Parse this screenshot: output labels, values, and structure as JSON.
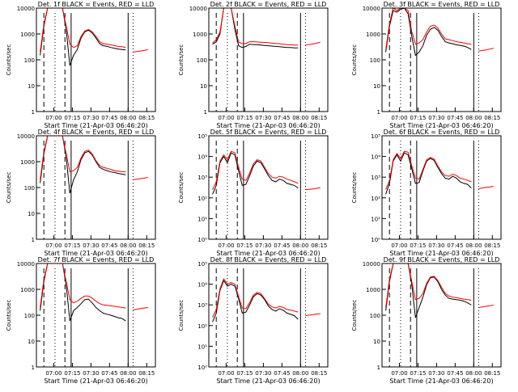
{
  "colors": {
    "events": "#000000",
    "lld": "#ff0000",
    "background": "#ffffff"
  },
  "shared": {
    "xlabel": "Start Time (21-Apr-03 06:46:20)",
    "ylabel": "Counts/sec",
    "x_ticks": [
      "07:00",
      "07:15",
      "07:30",
      "07:45",
      "08:00",
      "08:15"
    ],
    "y_ticks_decade": [
      "1",
      "10",
      "100",
      "1000",
      "10000"
    ],
    "y_ticks_exp": [
      "10⁰",
      "10¹",
      "10²",
      "10³",
      "10⁴",
      "10⁵"
    ]
  },
  "chart_data": [
    {
      "type": "line",
      "title": "Det. 1f BLACK = Events, RED = LLD",
      "ylim": [
        1,
        10000
      ],
      "yscale": "log",
      "tick_style": "decade",
      "x": [
        "06:49",
        "06:52",
        "06:55",
        "06:58",
        "07:01",
        "07:04",
        "07:07",
        "07:10",
        "07:13",
        "07:16",
        "07:19",
        "07:22",
        "07:25",
        "07:28",
        "07:31",
        "07:34",
        "07:37",
        "07:40",
        "07:43",
        "07:46",
        "07:49",
        "07:52",
        "07:55",
        "07:58",
        "08:01",
        "08:04",
        "08:07",
        "08:10",
        "08:13",
        "08:16"
      ],
      "series": [
        {
          "color": "#000000",
          "values": [
            150,
            2000,
            10000,
            10000,
            10000,
            10000,
            10000,
            1500,
            60,
            150,
            250,
            700,
            1200,
            1400,
            1100,
            700,
            420,
            350,
            330,
            300,
            280,
            260,
            250,
            240,
            null,
            null,
            null,
            null,
            null,
            null
          ]
        },
        {
          "color": "#ff0000",
          "values": [
            200,
            2500,
            10000,
            10000,
            10000,
            10000,
            10000,
            2000,
            400,
            300,
            350,
            800,
            1300,
            1500,
            1200,
            800,
            500,
            420,
            400,
            380,
            350,
            330,
            320,
            300,
            null,
            200,
            210,
            220,
            230,
            250
          ]
        }
      ]
    },
    {
      "type": "line",
      "title": "Det. 2f BLACK = Events, RED = LLD",
      "ylim": [
        1,
        10000
      ],
      "yscale": "log",
      "tick_style": "decade",
      "x": [
        "06:49",
        "06:52",
        "06:55",
        "06:58",
        "07:01",
        "07:04",
        "07:07",
        "07:10",
        "07:13",
        "07:16",
        "07:19",
        "07:22",
        "07:25",
        "07:28",
        "07:31",
        "07:34",
        "07:37",
        "07:40",
        "07:43",
        "07:46",
        "07:49",
        "07:52",
        "07:55",
        "07:58",
        "08:01",
        "08:04",
        "08:07",
        "08:10",
        "08:13",
        "08:16"
      ],
      "series": [
        {
          "color": "#000000",
          "values": [
            400,
            500,
            1000,
            10000,
            10000,
            10000,
            1500,
            350,
            300,
            330,
            400,
            390,
            380,
            370,
            360,
            350,
            340,
            330,
            320,
            310,
            300,
            300,
            290,
            290,
            null,
            null,
            null,
            null,
            null,
            null
          ]
        },
        {
          "color": "#ff0000",
          "values": [
            450,
            600,
            1200,
            10000,
            10000,
            10000,
            2000,
            480,
            420,
            430,
            500,
            500,
            490,
            480,
            470,
            460,
            440,
            430,
            420,
            400,
            390,
            380,
            370,
            370,
            null,
            380,
            390,
            410,
            440,
            480
          ]
        }
      ]
    },
    {
      "type": "line",
      "title": "Det. 3f BLACK = Events, RED = LLD",
      "ylim": [
        1,
        10000
      ],
      "yscale": "log",
      "tick_style": "decade",
      "x": [
        "06:49",
        "06:52",
        "06:55",
        "06:58",
        "07:01",
        "07:04",
        "07:07",
        "07:10",
        "07:13",
        "07:16",
        "07:19",
        "07:22",
        "07:25",
        "07:28",
        "07:31",
        "07:34",
        "07:37",
        "07:40",
        "07:43",
        "07:46",
        "07:49",
        "07:52",
        "07:55",
        "07:58",
        "08:01",
        "08:04",
        "08:07",
        "08:10",
        "08:13",
        "08:16"
      ],
      "series": [
        {
          "color": "#000000",
          "values": [
            200,
            2000,
            8000,
            7000,
            9000,
            10000,
            6000,
            800,
            150,
            200,
            350,
            900,
            1500,
            1800,
            1400,
            800,
            500,
            450,
            420,
            380,
            360,
            340,
            300,
            250,
            null,
            null,
            null,
            null,
            null,
            null
          ]
        },
        {
          "color": "#ff0000",
          "values": [
            250,
            2500,
            10000,
            8000,
            10000,
            10000,
            8000,
            1200,
            400,
            450,
            600,
            1200,
            2000,
            2200,
            1700,
            1000,
            650,
            600,
            550,
            500,
            480,
            450,
            420,
            400,
            null,
            220,
            230,
            240,
            260,
            280
          ]
        }
      ]
    },
    {
      "type": "line",
      "title": "Det. 4f BLACK = Events, RED = LLD",
      "ylim": [
        1,
        10000
      ],
      "yscale": "log",
      "tick_style": "decade",
      "x": [
        "06:49",
        "06:52",
        "06:55",
        "06:58",
        "07:01",
        "07:04",
        "07:07",
        "07:10",
        "07:13",
        "07:16",
        "07:19",
        "07:22",
        "07:25",
        "07:28",
        "07:31",
        "07:34",
        "07:37",
        "07:40",
        "07:43",
        "07:46",
        "07:49",
        "07:52",
        "07:55",
        "07:58",
        "08:01",
        "08:04",
        "08:07",
        "08:10",
        "08:13",
        "08:16"
      ],
      "series": [
        {
          "color": "#000000",
          "values": [
            150,
            2000,
            10000,
            10000,
            10000,
            10000,
            10000,
            1500,
            60,
            200,
            400,
            1200,
            2200,
            2500,
            1800,
            1000,
            600,
            500,
            450,
            400,
            380,
            350,
            330,
            310,
            null,
            null,
            null,
            null,
            null,
            null
          ]
        },
        {
          "color": "#ff0000",
          "values": [
            200,
            2500,
            10000,
            10000,
            10000,
            10000,
            10000,
            2000,
            400,
            450,
            600,
            1400,
            2500,
            2800,
            2000,
            1100,
            700,
            600,
            550,
            500,
            450,
            430,
            410,
            400,
            null,
            200,
            210,
            220,
            230,
            250
          ]
        }
      ]
    },
    {
      "type": "line",
      "title": "Det. 5f BLACK = Events, RED = LLD",
      "ylim": [
        1,
        100000
      ],
      "yscale": "log",
      "tick_style": "exponent",
      "x": [
        "06:49",
        "06:52",
        "06:55",
        "06:58",
        "07:01",
        "07:04",
        "07:07",
        "07:10",
        "07:13",
        "07:16",
        "07:19",
        "07:22",
        "07:25",
        "07:28",
        "07:31",
        "07:34",
        "07:37",
        "07:40",
        "07:43",
        "07:46",
        "07:49",
        "07:52",
        "07:55",
        "07:58",
        "08:01",
        "08:04",
        "08:07",
        "08:10",
        "08:13",
        "08:16"
      ],
      "series": [
        {
          "color": "#000000",
          "values": [
            150,
            400,
            5000,
            10000,
            5000,
            15000,
            12000,
            2000,
            400,
            450,
            1200,
            3500,
            6000,
            5000,
            2500,
            1200,
            700,
            600,
            800,
            700,
            500,
            450,
            400,
            300,
            null,
            null,
            null,
            null,
            null,
            null
          ]
        },
        {
          "color": "#ff0000",
          "values": [
            250,
            600,
            6000,
            12000,
            7000,
            18000,
            15000,
            3000,
            800,
            700,
            1600,
            4500,
            7000,
            6000,
            3000,
            1500,
            1000,
            900,
            1100,
            1000,
            800,
            700,
            600,
            500,
            null,
            250,
            260,
            270,
            290,
            310
          ]
        }
      ]
    },
    {
      "type": "line",
      "title": "Det. 6f BLACK = Events, RED = LLD",
      "ylim": [
        1,
        100000
      ],
      "yscale": "log",
      "tick_style": "exponent",
      "x": [
        "06:49",
        "06:52",
        "06:55",
        "06:58",
        "07:01",
        "07:04",
        "07:07",
        "07:10",
        "07:13",
        "07:16",
        "07:19",
        "07:22",
        "07:25",
        "07:28",
        "07:31",
        "07:34",
        "07:37",
        "07:40",
        "07:43",
        "07:46",
        "07:49",
        "07:52",
        "07:55",
        "07:58",
        "08:01",
        "08:04",
        "08:07",
        "08:10",
        "08:13",
        "08:16"
      ],
      "series": [
        {
          "color": "#000000",
          "values": [
            150,
            500,
            6000,
            12000,
            6000,
            15000,
            12000,
            2500,
            500,
            550,
            2000,
            6000,
            8000,
            6500,
            3000,
            1500,
            900,
            800,
            1100,
            900,
            600,
            500,
            450,
            300,
            null,
            null,
            null,
            null,
            null,
            null
          ]
        },
        {
          "color": "#ff0000",
          "values": [
            250,
            700,
            7000,
            14000,
            8000,
            18000,
            16000,
            3500,
            900,
            800,
            2400,
            7000,
            9000,
            7500,
            3500,
            1800,
            1200,
            1100,
            1400,
            1200,
            900,
            800,
            700,
            600,
            null,
            280,
            300,
            320,
            340,
            360
          ]
        }
      ]
    },
    {
      "type": "line",
      "title": "Det. 7f BLACK = Events, RED = LLD",
      "ylim": [
        1,
        10000
      ],
      "yscale": "log",
      "tick_style": "decade",
      "x": [
        "06:49",
        "06:52",
        "06:55",
        "06:58",
        "07:01",
        "07:04",
        "07:07",
        "07:10",
        "07:13",
        "07:16",
        "07:19",
        "07:22",
        "07:25",
        "07:28",
        "07:31",
        "07:34",
        "07:37",
        "07:40",
        "07:43",
        "07:46",
        "07:49",
        "07:52",
        "07:55",
        "07:58",
        "08:01",
        "08:04",
        "08:07",
        "08:10",
        "08:13",
        "08:16"
      ],
      "series": [
        {
          "color": "#000000",
          "values": [
            150,
            2000,
            10000,
            10000,
            10000,
            10000,
            10000,
            1500,
            60,
            150,
            200,
            280,
            400,
            420,
            300,
            200,
            150,
            120,
            110,
            100,
            90,
            80,
            75,
            60,
            null,
            null,
            null,
            null,
            null,
            null
          ]
        },
        {
          "color": "#ff0000",
          "values": [
            200,
            2500,
            10000,
            10000,
            10000,
            10000,
            10000,
            2000,
            400,
            300,
            350,
            450,
            550,
            550,
            450,
            350,
            280,
            250,
            240,
            230,
            220,
            210,
            200,
            190,
            null,
            160,
            170,
            180,
            190,
            200
          ]
        }
      ]
    },
    {
      "type": "line",
      "title": "Det. 8f BLACK = Events, RED = LLD",
      "ylim": [
        1,
        100000
      ],
      "yscale": "log",
      "tick_style": "exponent",
      "x": [
        "06:49",
        "06:52",
        "06:55",
        "06:58",
        "07:01",
        "07:04",
        "07:07",
        "07:10",
        "07:13",
        "07:16",
        "07:19",
        "07:22",
        "07:25",
        "07:28",
        "07:31",
        "07:34",
        "07:37",
        "07:40",
        "07:43",
        "07:46",
        "07:49",
        "07:52",
        "07:55",
        "07:58",
        "08:01",
        "08:04",
        "08:07",
        "08:10",
        "08:13",
        "08:16"
      ],
      "series": [
        {
          "color": "#000000",
          "values": [
            150,
            400,
            5000,
            15000,
            8000,
            10000,
            8000,
            2000,
            400,
            450,
            1000,
            2500,
            3500,
            3000,
            1800,
            900,
            600,
            500,
            650,
            550,
            400,
            350,
            300,
            200,
            null,
            null,
            null,
            null,
            null,
            null
          ]
        },
        {
          "color": "#ff0000",
          "values": [
            250,
            600,
            6000,
            18000,
            10000,
            12000,
            10000,
            2500,
            700,
            650,
            1300,
            3000,
            4000,
            3500,
            2000,
            1100,
            800,
            700,
            850,
            750,
            600,
            550,
            500,
            450,
            null,
            300,
            320,
            340,
            360,
            380
          ]
        }
      ]
    },
    {
      "type": "line",
      "title": "Det. 9f BLACK = Events, RED = LLD",
      "ylim": [
        1,
        10000
      ],
      "yscale": "log",
      "tick_style": "decade",
      "x": [
        "06:49",
        "06:52",
        "06:55",
        "06:58",
        "07:01",
        "07:04",
        "07:07",
        "07:10",
        "07:13",
        "07:16",
        "07:19",
        "07:22",
        "07:25",
        "07:28",
        "07:31",
        "07:34",
        "07:37",
        "07:40",
        "07:43",
        "07:46",
        "07:49",
        "07:52",
        "07:55",
        "07:58",
        "08:01",
        "08:04",
        "08:07",
        "08:10",
        "08:13",
        "08:16"
      ],
      "series": [
        {
          "color": "#000000",
          "values": [
            150,
            2000,
            10000,
            10000,
            10000,
            10000,
            10000,
            1500,
            80,
            200,
            500,
            1500,
            2800,
            3000,
            2000,
            1000,
            600,
            450,
            420,
            400,
            380,
            350,
            300,
            250,
            null,
            null,
            null,
            null,
            null,
            null
          ]
        },
        {
          "color": "#ff0000",
          "values": [
            200,
            2500,
            10000,
            10000,
            10000,
            10000,
            10000,
            2000,
            400,
            450,
            700,
            1700,
            3000,
            3200,
            2200,
            1200,
            700,
            550,
            500,
            480,
            450,
            420,
            400,
            380,
            null,
            200,
            210,
            220,
            230,
            250
          ]
        }
      ]
    }
  ]
}
